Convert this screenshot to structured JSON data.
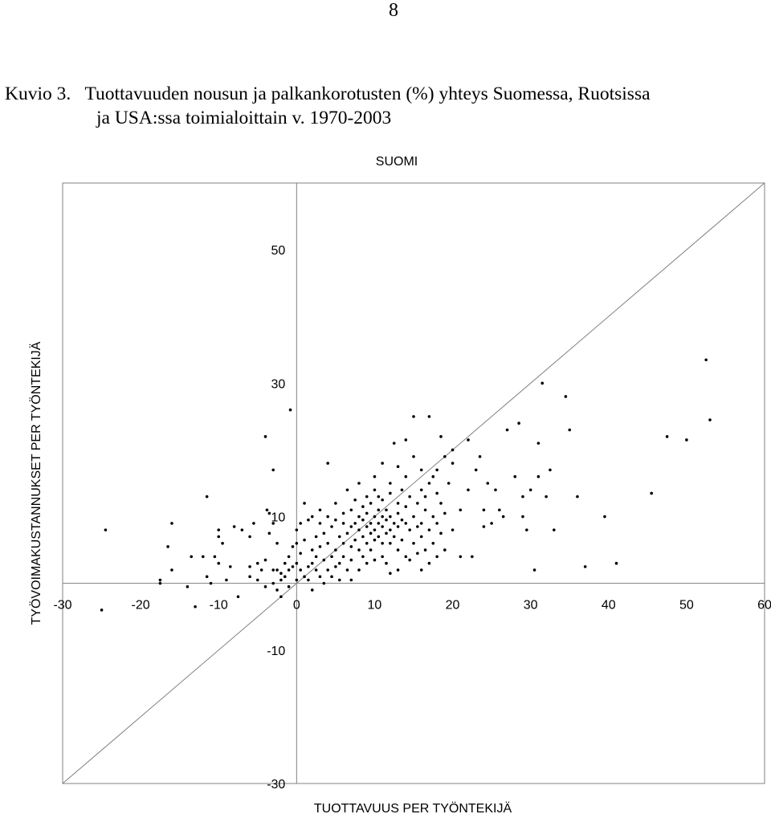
{
  "page_number": "8",
  "caption": {
    "line1": "Kuvio 3.   Tuottavuuden nousun ja palkankorotusten (%) yhteys Suomessa, Ruotsissa",
    "line2": "ja USA:ssa toimialoittain v. 1970-2003"
  },
  "chart_data": {
    "type": "scatter",
    "title": "SUOMI",
    "xlabel": "TUOTTAVUUS PER TYÖNTEKIJÄ",
    "ylabel": "TYÖVOIMAKUSTANNUKSET PER TYÖNTEKIJÄ",
    "xlim": [
      -30,
      60
    ],
    "ylim": [
      -30,
      60
    ],
    "x_ticks": [
      -30,
      -20,
      -10,
      0,
      10,
      20,
      30,
      40,
      50,
      60
    ],
    "y_ticks": [
      -30,
      -10,
      10,
      30,
      50
    ],
    "reference_line": "y = x",
    "grid": false,
    "legend": "none",
    "series": [
      {
        "points": [
          [
            -25,
            -4
          ],
          [
            -24.5,
            8
          ],
          [
            -17.5,
            0.5
          ],
          [
            -17.5,
            0
          ],
          [
            -16.5,
            5.5
          ],
          [
            -16,
            2
          ],
          [
            -16,
            9
          ],
          [
            -14,
            -0.5
          ],
          [
            -13.5,
            4
          ],
          [
            -13,
            -3.5
          ],
          [
            -12,
            4
          ],
          [
            -11.5,
            13
          ],
          [
            -11.5,
            1
          ],
          [
            -11,
            0
          ],
          [
            -10.5,
            4
          ],
          [
            -10,
            8
          ],
          [
            -10,
            7
          ],
          [
            -10,
            3
          ],
          [
            -9.5,
            6
          ],
          [
            -9,
            0.5
          ],
          [
            -8.5,
            2.5
          ],
          [
            -8,
            8.5
          ],
          [
            -7.5,
            -2
          ],
          [
            -7,
            8
          ],
          [
            -6,
            7
          ],
          [
            -6,
            2.5
          ],
          [
            -6,
            1
          ],
          [
            -5.5,
            9
          ],
          [
            -5,
            0.5
          ],
          [
            -5,
            3
          ],
          [
            -4.5,
            2
          ],
          [
            -4,
            -0.5
          ],
          [
            -4,
            3.5
          ],
          [
            -4,
            22
          ],
          [
            -3.8,
            11
          ],
          [
            -3.5,
            7.5
          ],
          [
            -3.5,
            10.5
          ],
          [
            -3,
            17
          ],
          [
            -3,
            2
          ],
          [
            -3,
            0
          ],
          [
            -3,
            9
          ],
          [
            -2.5,
            -1
          ],
          [
            -2.5,
            6
          ],
          [
            -2.5,
            2
          ],
          [
            -2,
            -2
          ],
          [
            -2,
            1.5
          ],
          [
            -2,
            0.5
          ],
          [
            -1.5,
            3
          ],
          [
            -1.5,
            1
          ],
          [
            -1,
            4
          ],
          [
            -1,
            -0.5
          ],
          [
            -1,
            2
          ],
          [
            -0.8,
            26
          ],
          [
            -0.5,
            5.5
          ],
          [
            -0.5,
            2.5
          ],
          [
            0,
            6
          ],
          [
            0,
            3
          ],
          [
            0,
            0.5
          ],
          [
            0,
            8
          ],
          [
            0.5,
            2
          ],
          [
            0.5,
            9
          ],
          [
            0.5,
            4.5
          ],
          [
            1,
            1
          ],
          [
            1,
            12
          ],
          [
            1,
            6.5
          ],
          [
            1.5,
            2.5
          ],
          [
            1.5,
            9.5
          ],
          [
            1.5,
            0.5
          ],
          [
            2,
            5
          ],
          [
            2,
            3
          ],
          [
            2,
            10
          ],
          [
            2,
            -1
          ],
          [
            2.5,
            7
          ],
          [
            2.5,
            2
          ],
          [
            2.5,
            4
          ],
          [
            3,
            9
          ],
          [
            3,
            1
          ],
          [
            3,
            5.5
          ],
          [
            3,
            11
          ],
          [
            3.5,
            3.5
          ],
          [
            3.5,
            7.5
          ],
          [
            3.5,
            0
          ],
          [
            4,
            10
          ],
          [
            4,
            2
          ],
          [
            4,
            6
          ],
          [
            4,
            18
          ],
          [
            4.5,
            8.5
          ],
          [
            4.5,
            4
          ],
          [
            4.5,
            1
          ],
          [
            5,
            9.5
          ],
          [
            5,
            5
          ],
          [
            5,
            2.5
          ],
          [
            5,
            12
          ],
          [
            5.5,
            7
          ],
          [
            5.5,
            3
          ],
          [
            5.5,
            0.5
          ],
          [
            6,
            9
          ],
          [
            6,
            6
          ],
          [
            6,
            4
          ],
          [
            6,
            10.5
          ],
          [
            6.5,
            7.5
          ],
          [
            6.5,
            2
          ],
          [
            6.5,
            14
          ],
          [
            7,
            8.5
          ],
          [
            7,
            5.5
          ],
          [
            7,
            3.5
          ],
          [
            7,
            11
          ],
          [
            7,
            0.5
          ],
          [
            7.5,
            9
          ],
          [
            7.5,
            6.5
          ],
          [
            7.5,
            12.5
          ],
          [
            8,
            8
          ],
          [
            8,
            5
          ],
          [
            8,
            10
          ],
          [
            8,
            2
          ],
          [
            8,
            15
          ],
          [
            8.5,
            9.5
          ],
          [
            8.5,
            7
          ],
          [
            8.5,
            4
          ],
          [
            8.5,
            11.5
          ],
          [
            9,
            8.5
          ],
          [
            9,
            6
          ],
          [
            9,
            10.5
          ],
          [
            9,
            3
          ],
          [
            9,
            13
          ],
          [
            9.5,
            9
          ],
          [
            9.5,
            7.5
          ],
          [
            9.5,
            5
          ],
          [
            9.5,
            12
          ],
          [
            10,
            10
          ],
          [
            10,
            8
          ],
          [
            10,
            6.5
          ],
          [
            10,
            14
          ],
          [
            10,
            3.5
          ],
          [
            10,
            16
          ],
          [
            10.5,
            9
          ],
          [
            10.5,
            11
          ],
          [
            10.5,
            7
          ],
          [
            10.5,
            13
          ],
          [
            11,
            8.5
          ],
          [
            11,
            10
          ],
          [
            11,
            6
          ],
          [
            11,
            12.5
          ],
          [
            11,
            4
          ],
          [
            11,
            18
          ],
          [
            11.5,
            9.5
          ],
          [
            11.5,
            7.5
          ],
          [
            11.5,
            11
          ],
          [
            11.5,
            3
          ],
          [
            12,
            10
          ],
          [
            12,
            8
          ],
          [
            12,
            13.5
          ],
          [
            12,
            6
          ],
          [
            12,
            15
          ],
          [
            12,
            1.5
          ],
          [
            12.5,
            9
          ],
          [
            12.5,
            21
          ],
          [
            12.5,
            7
          ],
          [
            13,
            10.5
          ],
          [
            13,
            8.5
          ],
          [
            13,
            12
          ],
          [
            13,
            5
          ],
          [
            13,
            17.5
          ],
          [
            13,
            2
          ],
          [
            13.5,
            9.5
          ],
          [
            13.5,
            14
          ],
          [
            13.5,
            6.5
          ],
          [
            14,
            9
          ],
          [
            14,
            11.5
          ],
          [
            14,
            16
          ],
          [
            14,
            4
          ],
          [
            14,
            21.5
          ],
          [
            14.5,
            8
          ],
          [
            14.5,
            13
          ],
          [
            14.5,
            3.5
          ],
          [
            15,
            10
          ],
          [
            15,
            6
          ],
          [
            15,
            19
          ],
          [
            15,
            25
          ],
          [
            15.5,
            8.5
          ],
          [
            15.5,
            12
          ],
          [
            15.5,
            4.5
          ],
          [
            16,
            9
          ],
          [
            16,
            14
          ],
          [
            16,
            7
          ],
          [
            16,
            17
          ],
          [
            16,
            2
          ],
          [
            16.5,
            11
          ],
          [
            16.5,
            5
          ],
          [
            16.5,
            13
          ],
          [
            17,
            8
          ],
          [
            17,
            15
          ],
          [
            17,
            25
          ],
          [
            17,
            3
          ],
          [
            17.5,
            10
          ],
          [
            17.5,
            16
          ],
          [
            17.5,
            6
          ],
          [
            18,
            9
          ],
          [
            18,
            13.5
          ],
          [
            18,
            17
          ],
          [
            18,
            4
          ],
          [
            18.5,
            12
          ],
          [
            18.5,
            22
          ],
          [
            18.5,
            7.5
          ],
          [
            19,
            19
          ],
          [
            19,
            10.5
          ],
          [
            19,
            5
          ],
          [
            19.5,
            15
          ],
          [
            20,
            20
          ],
          [
            20,
            8
          ],
          [
            20,
            18
          ],
          [
            21,
            11
          ],
          [
            21,
            4
          ],
          [
            22,
            14
          ],
          [
            22,
            21.5
          ],
          [
            22.5,
            4
          ],
          [
            23,
            17
          ],
          [
            23.5,
            19
          ],
          [
            24,
            11
          ],
          [
            24,
            8.5
          ],
          [
            24.5,
            15
          ],
          [
            25,
            9
          ],
          [
            25.5,
            14
          ],
          [
            26,
            11
          ],
          [
            26.5,
            10
          ],
          [
            27,
            23
          ],
          [
            28,
            16
          ],
          [
            28.5,
            24
          ],
          [
            29,
            13
          ],
          [
            29,
            10
          ],
          [
            29.5,
            8
          ],
          [
            30,
            14
          ],
          [
            30.5,
            2
          ],
          [
            31,
            16
          ],
          [
            31,
            21
          ],
          [
            31.5,
            30
          ],
          [
            32,
            13
          ],
          [
            32.5,
            17
          ],
          [
            33,
            8
          ],
          [
            34.5,
            28
          ],
          [
            35,
            23
          ],
          [
            36,
            13
          ],
          [
            37,
            2.5
          ],
          [
            39.5,
            10
          ],
          [
            41,
            3
          ],
          [
            45.5,
            13.5
          ],
          [
            47.5,
            22
          ],
          [
            50,
            21.5
          ],
          [
            52.5,
            33.5
          ],
          [
            53,
            24.5
          ]
        ]
      }
    ]
  }
}
